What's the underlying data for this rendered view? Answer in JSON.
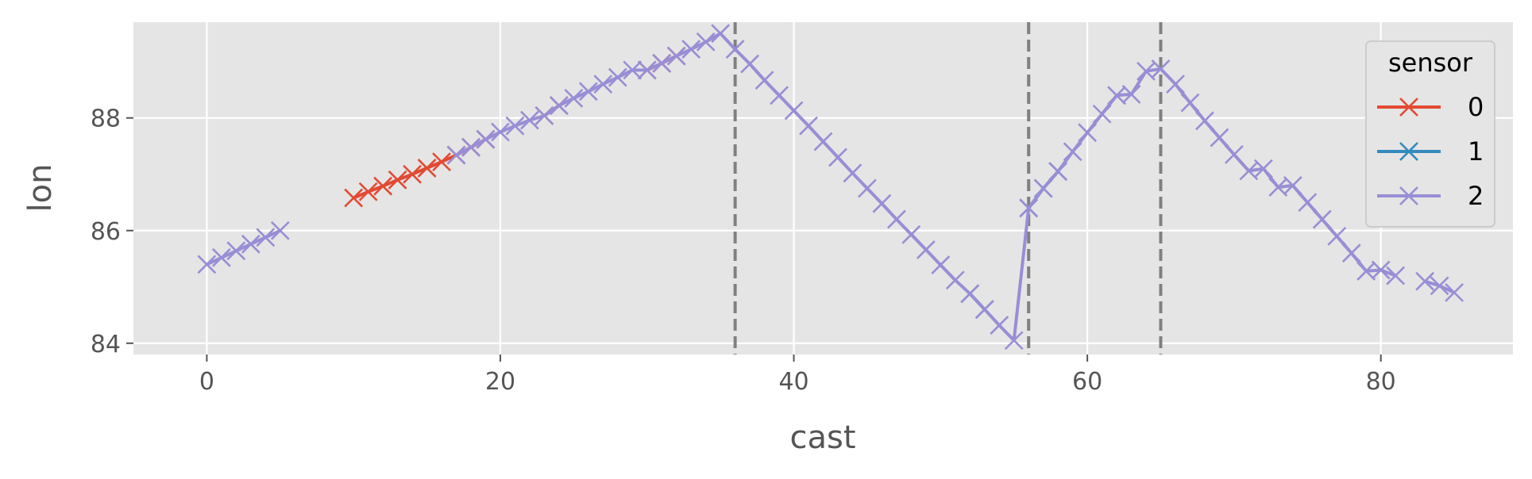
{
  "colors": {
    "panel": "#E5E5E5",
    "grid": "#FFFFFF",
    "tick": "#555555",
    "vline": "#808080"
  },
  "chart_data": {
    "type": "line",
    "marker": "x",
    "xlabel": "cast",
    "ylabel": "lon",
    "xlim": [
      -5,
      89
    ],
    "ylim": [
      83.8,
      89.7
    ],
    "xticks": [
      0,
      20,
      40,
      60,
      80
    ],
    "yticks": [
      84,
      86,
      88
    ],
    "grid": true,
    "vlines": [
      36,
      56,
      65
    ],
    "legend": {
      "title": "sensor",
      "position": "top-right"
    },
    "series": [
      {
        "name": "0",
        "color": "#E24A33",
        "segments": [
          [
            [
              10,
              86.58
            ],
            [
              11,
              86.69
            ],
            [
              12,
              86.79
            ],
            [
              13,
              86.9
            ],
            [
              14,
              87.0
            ],
            [
              15,
              87.11
            ],
            [
              16,
              87.22
            ],
            [
              17,
              87.34
            ],
            [
              18,
              87.48
            ],
            [
              19,
              87.62
            ]
          ],
          [
            [
              23,
              88.04
            ],
            [
              24,
              88.22
            ]
          ],
          [
            [
              30,
              88.85
            ],
            [
              31,
              88.97
            ],
            [
              32,
              89.1
            ]
          ]
        ]
      },
      {
        "name": "1",
        "color": "#348ABD",
        "segments": [
          [
            [
              52,
              84.88
            ],
            [
              53,
              84.6
            ]
          ],
          [
            [
              56,
              86.4
            ],
            [
              57,
              86.75
            ],
            [
              58,
              87.05
            ]
          ]
        ]
      },
      {
        "name": "2",
        "color": "#988ED5",
        "segments": [
          [
            [
              0,
              85.4
            ],
            [
              1,
              85.52
            ],
            [
              2,
              85.64
            ],
            [
              3,
              85.76
            ],
            [
              4,
              85.88
            ],
            [
              5,
              86.0
            ]
          ],
          [
            [
              17,
              87.34
            ],
            [
              18,
              87.48
            ],
            [
              19,
              87.62
            ],
            [
              20,
              87.75
            ],
            [
              21,
              87.86
            ],
            [
              22,
              87.96
            ],
            [
              23,
              88.04
            ],
            [
              24,
              88.22
            ],
            [
              25,
              88.35
            ],
            [
              26,
              88.47
            ],
            [
              27,
              88.6
            ],
            [
              28,
              88.72
            ],
            [
              29,
              88.85
            ],
            [
              30,
              88.85
            ],
            [
              31,
              88.97
            ],
            [
              32,
              89.1
            ],
            [
              33,
              89.22
            ],
            [
              34,
              89.35
            ],
            [
              35,
              89.5
            ],
            [
              36,
              89.22
            ],
            [
              37,
              88.96
            ],
            [
              38,
              88.67
            ],
            [
              39,
              88.4
            ],
            [
              40,
              88.13
            ],
            [
              41,
              87.86
            ],
            [
              42,
              87.58
            ],
            [
              43,
              87.3
            ],
            [
              44,
              87.02
            ],
            [
              45,
              86.75
            ],
            [
              46,
              86.48
            ],
            [
              47,
              86.2
            ],
            [
              48,
              85.93
            ],
            [
              49,
              85.66
            ],
            [
              50,
              85.39
            ],
            [
              51,
              85.12
            ],
            [
              52,
              84.88
            ],
            [
              53,
              84.6
            ],
            [
              54,
              84.32
            ],
            [
              55,
              84.05
            ],
            [
              56,
              86.4
            ],
            [
              57,
              86.75
            ],
            [
              58,
              87.05
            ],
            [
              59,
              87.4
            ],
            [
              60,
              87.74
            ],
            [
              61,
              88.07
            ],
            [
              62,
              88.4
            ],
            [
              63,
              88.42
            ],
            [
              64,
              88.83
            ],
            [
              65,
              88.87
            ],
            [
              66,
              88.6
            ],
            [
              67,
              88.27
            ],
            [
              68,
              87.95
            ],
            [
              69,
              87.65
            ],
            [
              70,
              87.35
            ],
            [
              71,
              87.06
            ],
            [
              72,
              87.1
            ],
            [
              73,
              86.77
            ],
            [
              74,
              86.8
            ],
            [
              75,
              86.5
            ],
            [
              76,
              86.2
            ],
            [
              77,
              85.9
            ],
            [
              78,
              85.6
            ],
            [
              79,
              85.28
            ],
            [
              80,
              85.3
            ],
            [
              81,
              85.2
            ]
          ],
          [
            [
              83,
              85.1
            ],
            [
              84,
              85.02
            ],
            [
              85,
              84.9
            ]
          ]
        ]
      }
    ]
  }
}
